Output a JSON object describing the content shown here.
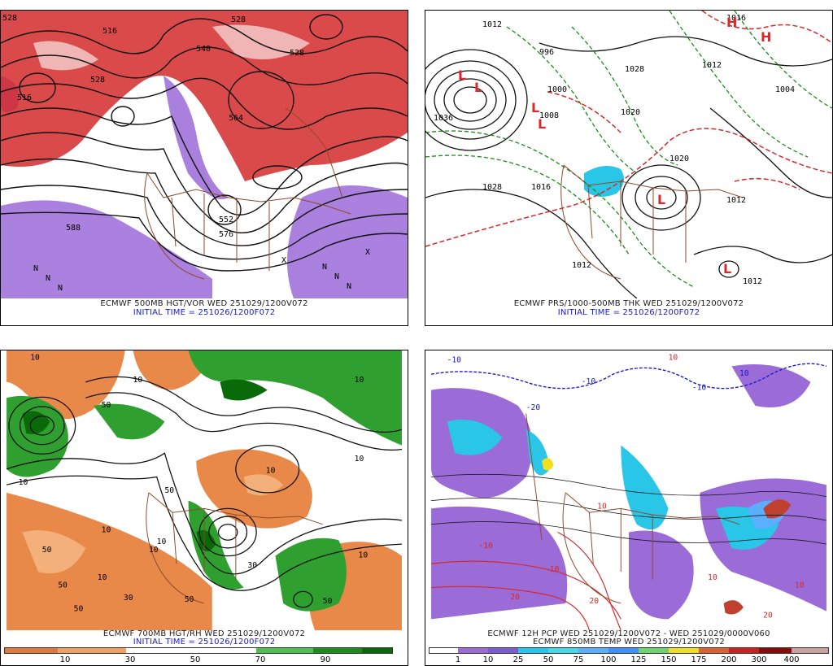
{
  "panels": [
    {
      "id": "p500",
      "caption": "ECMWF 500MB HGT/VOR WED 251029/1200V072",
      "initial": "INITIAL TIME = 251026/1200F072",
      "labels": [
        "528",
        "516",
        "516",
        "528",
        "528",
        "540",
        "528",
        "564",
        "552",
        "576",
        "588",
        "N",
        "N",
        "N",
        "X",
        "X",
        "N",
        "N",
        "N"
      ]
    },
    {
      "id": "pmsl",
      "caption": "ECMWF PRS/1000-500MB THK WED 251029/1200V072",
      "initial": "INITIAL TIME = 251026/1200F072",
      "labels": [
        "1012",
        "1012",
        "1028",
        "1020",
        "1004",
        "1016",
        "1036",
        "1008",
        "1028",
        "1020",
        "1016",
        "1012",
        "1012",
        "1012",
        "1000",
        "996",
        "L",
        "L",
        "L",
        "L",
        "H",
        "H",
        "L",
        "L"
      ]
    },
    {
      "id": "p700",
      "caption": "ECMWF 700MB HGT/RH WED 251029/1200V072",
      "initial": "INITIAL TIME = 251026/1200F072",
      "labels": [
        "50",
        "10",
        "10",
        "50",
        "10",
        "10",
        "50",
        "10",
        "10",
        "50",
        "50",
        "10",
        "10",
        "30",
        "10",
        "30",
        "50",
        "10",
        "10",
        "50"
      ],
      "colorbar": {
        "ticks": [
          "10",
          "30",
          "50",
          "70",
          "90"
        ],
        "colors": [
          "#e07a3c",
          "#f0a060",
          "#ffffff",
          "#4fbf4f",
          "#1a8c1a",
          "#0a6a0a"
        ]
      }
    },
    {
      "id": "ppcp",
      "caption": "ECMWF 12H PCP WED 251029/1200V072 - WED 251029/0000V060",
      "initial": "ECMWF 850MB TEMP WED 251029/1200V072",
      "labels": [
        "-10",
        "-10",
        "10",
        "-20",
        "-10",
        "10",
        "10",
        "-10",
        "10",
        "20",
        "20",
        "20",
        "10",
        "10"
      ],
      "colorbar": {
        "ticks": [
          "1",
          "10",
          "25",
          "50",
          "75",
          "100",
          "125",
          "150",
          "175",
          "200",
          "300",
          "400"
        ],
        "colors": [
          "#ffffff",
          "#9b6bd8",
          "#7b5bd0",
          "#22c8f0",
          "#44d8e8",
          "#5ab0ff",
          "#3c90ff",
          "#6fd46f",
          "#f0e020",
          "#e06030",
          "#cc2020",
          "#8a0a0a",
          "#c8a0a0"
        ]
      }
    }
  ]
}
